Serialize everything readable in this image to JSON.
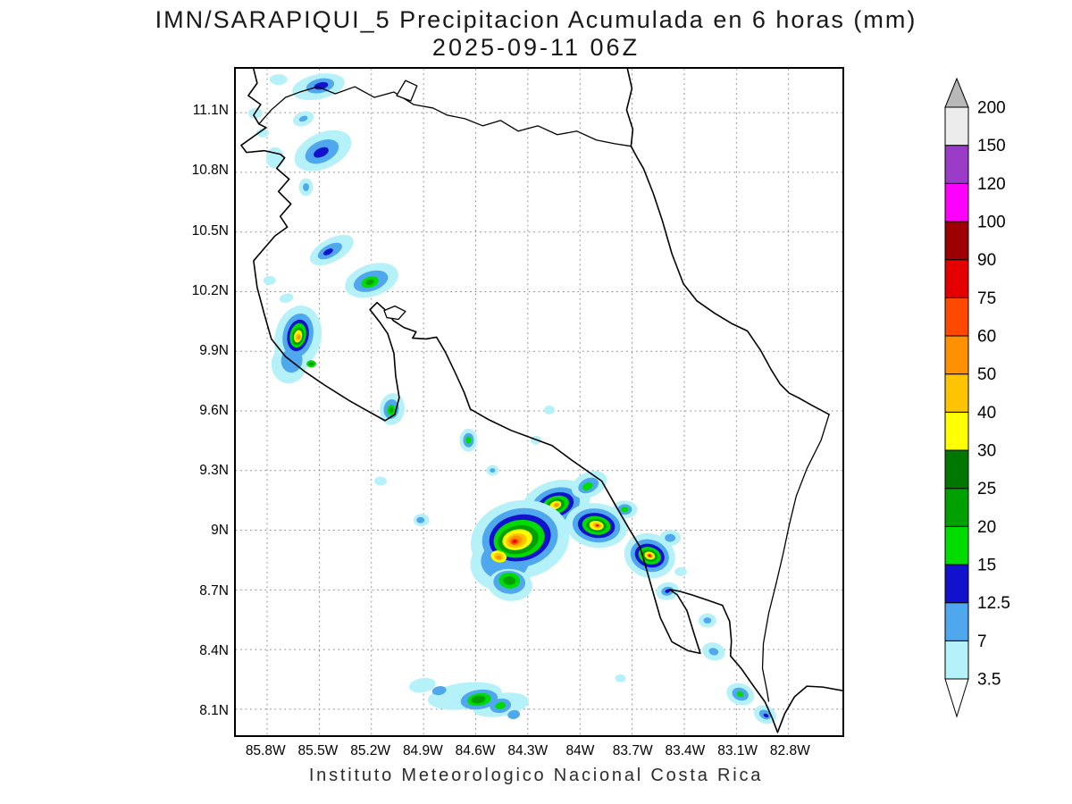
{
  "header": {
    "title": "IMN/SARAPIQUI_5 Precipitacion Acumulada en 6 horas (mm)",
    "datetime": "2025-09-11 06Z"
  },
  "footer": {
    "text": "Instituto Meteorologico Nacional Costa Rica"
  },
  "map": {
    "region": "Costa Rica",
    "grid_style": "dotted",
    "lat_axis": {
      "ticks": [
        "11.1N",
        "10.8N",
        "10.5N",
        "10.2N",
        "9.9N",
        "9.6N",
        "9.3N",
        "9N",
        "8.7N",
        "8.4N",
        "8.1N"
      ],
      "values": [
        11.1,
        10.8,
        10.5,
        10.2,
        9.9,
        9.6,
        9.3,
        9.0,
        8.7,
        8.4,
        8.1
      ],
      "range": [
        7.97,
        11.32
      ]
    },
    "lon_axis": {
      "ticks": [
        "85.8W",
        "85.5W",
        "85.2W",
        "84.9W",
        "84.6W",
        "84.3W",
        "84W",
        "83.7W",
        "83.4W",
        "83.1W",
        "82.8W"
      ],
      "values": [
        85.8,
        85.5,
        85.2,
        84.9,
        84.6,
        84.3,
        84.0,
        83.7,
        83.4,
        83.1,
        82.8
      ],
      "range": [
        85.98,
        82.49
      ]
    }
  },
  "colorbar": {
    "unit": "mm",
    "levels": [
      "3.5",
      "7",
      "12.5",
      "15",
      "20",
      "25",
      "30",
      "40",
      "50",
      "60",
      "75",
      "90",
      "100",
      "120",
      "150",
      "200"
    ],
    "segment_colors": [
      "#b5f1f9",
      "#4fa8ee",
      "#1212cd",
      "#00dc00",
      "#00a000",
      "#007800",
      "#ffff00",
      "#ffc400",
      "#ff9000",
      "#ff4800",
      "#e40000",
      "#9c0000",
      "#ff00ff",
      "#9a3cc8",
      "#ececec"
    ],
    "under_color": "#ffffff",
    "over_color": "#b8b8b8"
  }
}
